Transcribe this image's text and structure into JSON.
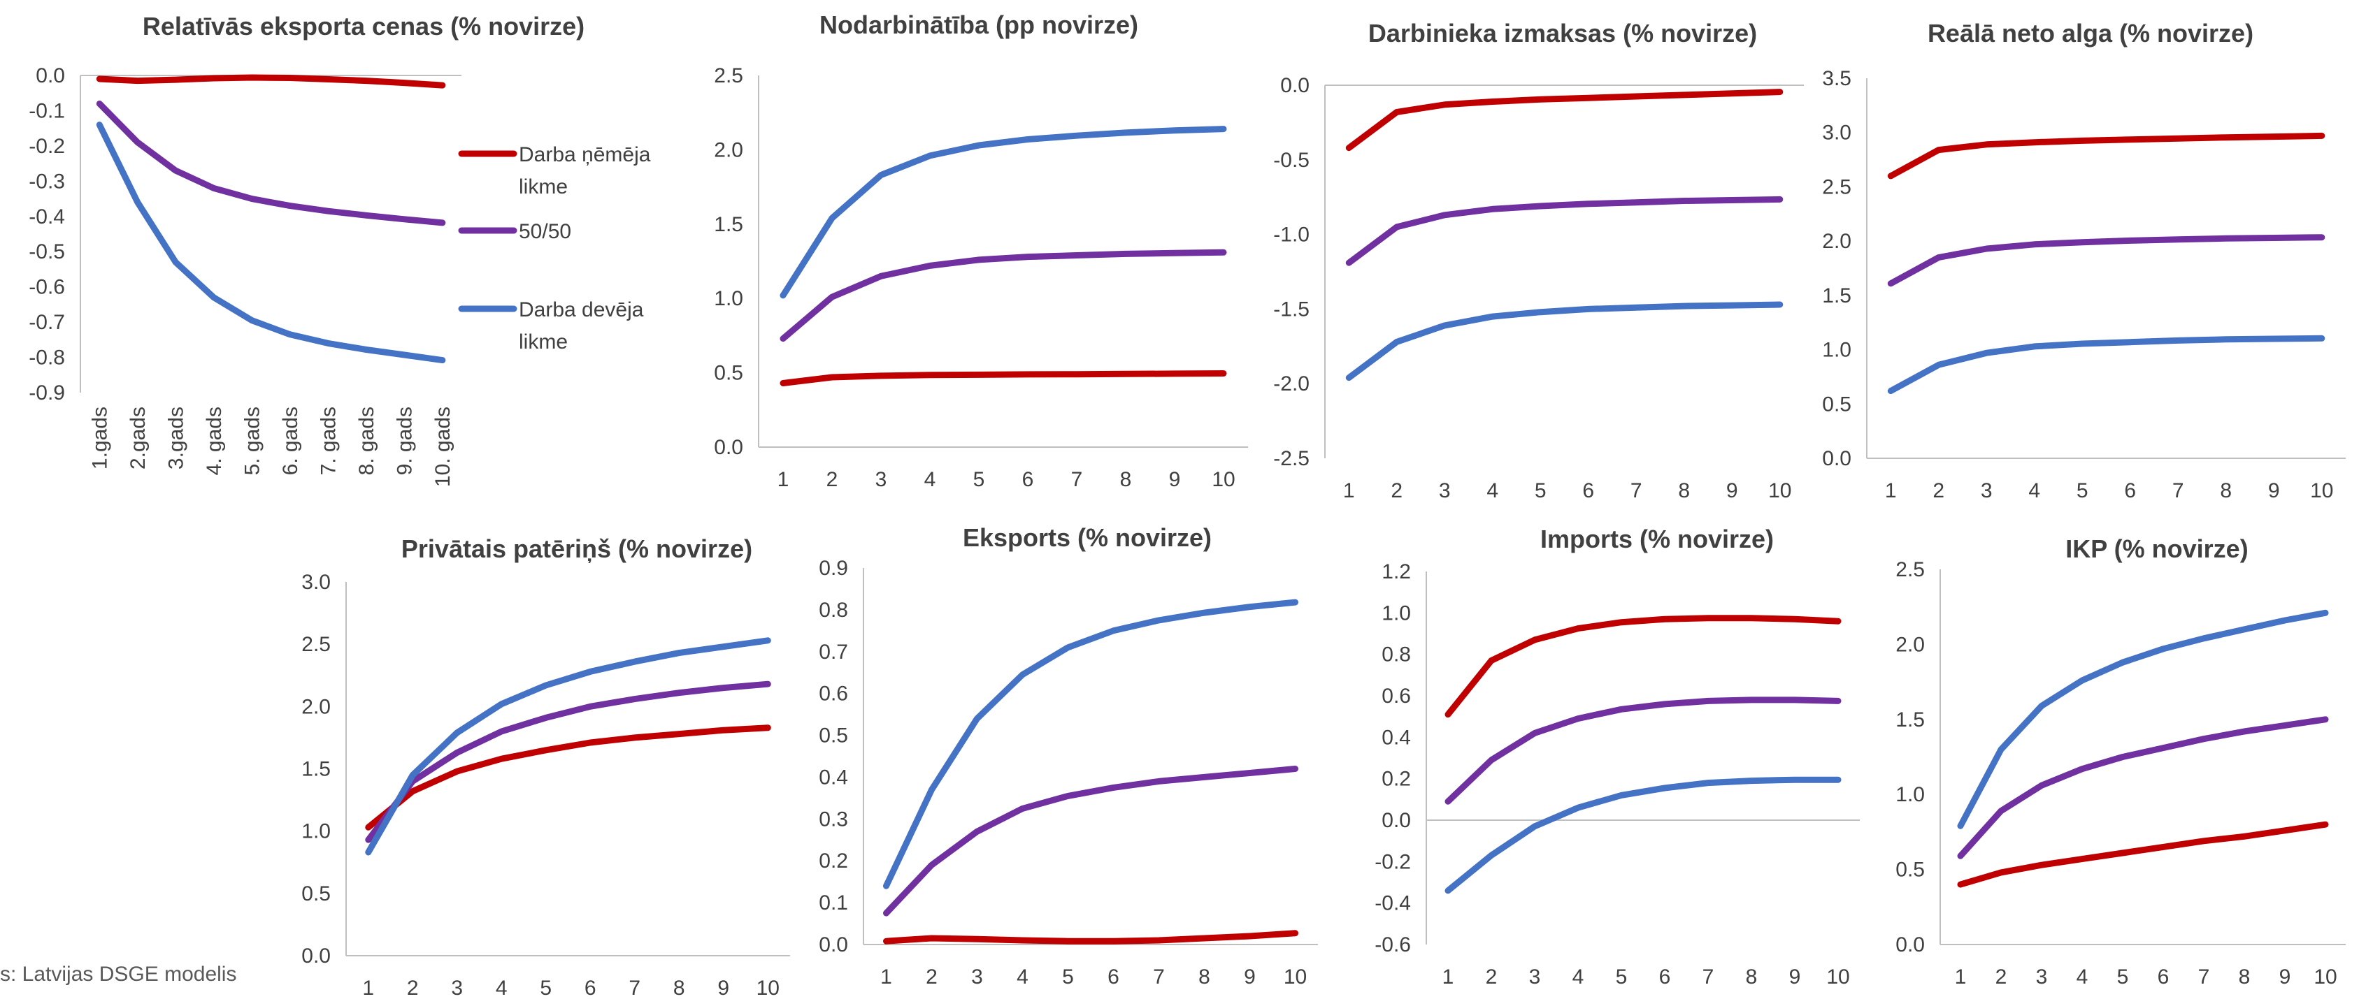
{
  "colors": {
    "employee": "#c00000",
    "split": "#7030a0",
    "employer": "#4472c4",
    "axis": "#bfbfbf",
    "text": "#404040"
  },
  "legend": [
    {
      "lines": [
        "Darba ņēmēja",
        "likme"
      ],
      "color": "#c00000"
    },
    {
      "lines": [
        "50/50"
      ],
      "color": "#7030a0"
    },
    {
      "lines": [
        "Darba devēja",
        "likme"
      ],
      "color": "#4472c4"
    }
  ],
  "source_text": "s: Latvijas DSGE modelis",
  "chart_data": [
    {
      "type": "line",
      "title": "Relatīvās eksporta cenas (% novirze)",
      "categories": [
        "1.gads",
        "2.gads",
        "3.gads",
        "4. gads",
        "5. gads",
        "6. gads",
        "7. gads",
        "8. gads",
        "9. gads",
        "10. gads"
      ],
      "ylim": [
        -0.9,
        0.0
      ],
      "yticks": [
        "0.0",
        "-0.1",
        "-0.2",
        "-0.3",
        "-0.4",
        "-0.5",
        "-0.6",
        "-0.7",
        "-0.8",
        "-0.9"
      ],
      "series": [
        {
          "name": "Darba ņēmēja likme",
          "color": "#c00000",
          "values": [
            -0.01,
            -0.015,
            -0.012,
            -0.008,
            -0.006,
            -0.007,
            -0.011,
            -0.015,
            -0.021,
            -0.028
          ]
        },
        {
          "name": "50/50",
          "color": "#7030a0",
          "values": [
            -0.08,
            -0.19,
            -0.27,
            -0.32,
            -0.35,
            -0.37,
            -0.385,
            -0.397,
            -0.408,
            -0.418
          ]
        },
        {
          "name": "Darba devēja likme",
          "color": "#4472c4",
          "values": [
            -0.14,
            -0.36,
            -0.53,
            -0.63,
            -0.695,
            -0.735,
            -0.76,
            -0.778,
            -0.793,
            -0.808
          ]
        }
      ]
    },
    {
      "type": "line",
      "title": "Nodarbinātība (pp novirze)",
      "categories": [
        "1",
        "2",
        "3",
        "4",
        "5",
        "6",
        "7",
        "8",
        "9",
        "10"
      ],
      "ylim": [
        0.0,
        2.5
      ],
      "yticks": [
        "2.5",
        "2.0",
        "1.5",
        "1.0",
        "0.5",
        "0.0"
      ],
      "series": [
        {
          "name": "Darba ņēmēja likme",
          "color": "#c00000",
          "values": [
            0.43,
            0.47,
            0.48,
            0.485,
            0.487,
            0.489,
            0.49,
            0.492,
            0.494,
            0.496
          ]
        },
        {
          "name": "50/50",
          "color": "#7030a0",
          "values": [
            0.73,
            1.01,
            1.15,
            1.22,
            1.26,
            1.28,
            1.29,
            1.3,
            1.305,
            1.31
          ]
        },
        {
          "name": "Darba devēja likme",
          "color": "#4472c4",
          "values": [
            1.02,
            1.54,
            1.83,
            1.96,
            2.03,
            2.07,
            2.095,
            2.115,
            2.13,
            2.14
          ]
        }
      ]
    },
    {
      "type": "line",
      "title": "Darbinieka izmaksas (% novirze)",
      "categories": [
        "1",
        "2",
        "3",
        "4",
        "5",
        "6",
        "7",
        "8",
        "9",
        "10"
      ],
      "ylim": [
        -2.5,
        0.0
      ],
      "yticks": [
        "0.0",
        "-0.5",
        "-1.0",
        "-1.5",
        "-2.0",
        "-2.5"
      ],
      "series": [
        {
          "name": "Darba ņēmēja likme",
          "color": "#c00000",
          "values": [
            -0.42,
            -0.18,
            -0.13,
            -0.11,
            -0.095,
            -0.085,
            -0.075,
            -0.065,
            -0.055,
            -0.045
          ]
        },
        {
          "name": "50/50",
          "color": "#7030a0",
          "values": [
            -1.19,
            -0.95,
            -0.87,
            -0.83,
            -0.81,
            -0.795,
            -0.785,
            -0.775,
            -0.77,
            -0.765
          ]
        },
        {
          "name": "Darba devēja likme",
          "color": "#4472c4",
          "values": [
            -1.96,
            -1.72,
            -1.61,
            -1.55,
            -1.52,
            -1.5,
            -1.49,
            -1.48,
            -1.475,
            -1.47
          ]
        }
      ]
    },
    {
      "type": "line",
      "title": "Reālā neto alga (% novirze)",
      "categories": [
        "1",
        "2",
        "3",
        "4",
        "5",
        "6",
        "7",
        "8",
        "9",
        "10"
      ],
      "ylim": [
        0.0,
        3.5
      ],
      "yticks": [
        "3.5",
        "3.0",
        "2.5",
        "2.0",
        "1.5",
        "1.0",
        "0.5",
        "0.0"
      ],
      "series": [
        {
          "name": "Darba ņēmēja likme",
          "color": "#c00000",
          "values": [
            2.6,
            2.84,
            2.89,
            2.91,
            2.925,
            2.935,
            2.945,
            2.955,
            2.962,
            2.97
          ]
        },
        {
          "name": "50/50",
          "color": "#7030a0",
          "values": [
            1.61,
            1.85,
            1.93,
            1.97,
            1.99,
            2.005,
            2.015,
            2.025,
            2.03,
            2.035
          ]
        },
        {
          "name": "Darba devēja likme",
          "color": "#4472c4",
          "values": [
            0.62,
            0.86,
            0.97,
            1.03,
            1.055,
            1.07,
            1.085,
            1.095,
            1.1,
            1.105
          ]
        }
      ]
    },
    {
      "type": "line",
      "title": "Privātais patēriņš (% novirze)",
      "categories": [
        "1",
        "2",
        "3",
        "4",
        "5",
        "6",
        "7",
        "8",
        "9",
        "10"
      ],
      "ylim": [
        0.0,
        3.0
      ],
      "yticks": [
        "3.0",
        "2.5",
        "2.0",
        "1.5",
        "1.0",
        "0.5",
        "0.0"
      ],
      "series": [
        {
          "name": "Darba ņēmēja likme",
          "color": "#c00000",
          "values": [
            1.03,
            1.32,
            1.48,
            1.58,
            1.65,
            1.71,
            1.75,
            1.78,
            1.81,
            1.83
          ]
        },
        {
          "name": "50/50",
          "color": "#7030a0",
          "values": [
            0.93,
            1.4,
            1.63,
            1.8,
            1.91,
            2.0,
            2.06,
            2.11,
            2.15,
            2.18
          ]
        },
        {
          "name": "Darba devēja likme",
          "color": "#4472c4",
          "values": [
            0.83,
            1.45,
            1.79,
            2.02,
            2.17,
            2.28,
            2.36,
            2.43,
            2.48,
            2.53
          ]
        }
      ]
    },
    {
      "type": "line",
      "title": "Eksports (% novirze)",
      "categories": [
        "1",
        "2",
        "3",
        "4",
        "5",
        "6",
        "7",
        "8",
        "9",
        "10"
      ],
      "ylim": [
        0.0,
        0.9
      ],
      "yticks": [
        "0.9",
        "0.8",
        "0.7",
        "0.6",
        "0.5",
        "0.4",
        "0.3",
        "0.2",
        "0.1",
        "0.0"
      ],
      "series": [
        {
          "name": "Darba ņēmēja likme",
          "color": "#c00000",
          "values": [
            0.008,
            0.015,
            0.013,
            0.01,
            0.008,
            0.008,
            0.01,
            0.015,
            0.02,
            0.027
          ]
        },
        {
          "name": "50/50",
          "color": "#7030a0",
          "values": [
            0.075,
            0.19,
            0.27,
            0.325,
            0.355,
            0.375,
            0.39,
            0.4,
            0.41,
            0.42
          ]
        },
        {
          "name": "Darba devēja likme",
          "color": "#4472c4",
          "values": [
            0.14,
            0.37,
            0.54,
            0.645,
            0.71,
            0.75,
            0.775,
            0.793,
            0.807,
            0.818
          ]
        }
      ]
    },
    {
      "type": "line",
      "title": "Imports (% novirze)",
      "categories": [
        "1",
        "2",
        "3",
        "4",
        "5",
        "6",
        "7",
        "8",
        "9",
        "10"
      ],
      "ylim": [
        -0.6,
        1.2
      ],
      "yticks": [
        "1.2",
        "1.0",
        "0.8",
        "0.6",
        "0.4",
        "0.2",
        "0.0",
        "-0.2",
        "-0.4",
        "-0.6"
      ],
      "series": [
        {
          "name": "Darba ņēmēja likme",
          "color": "#c00000",
          "values": [
            0.51,
            0.77,
            0.87,
            0.925,
            0.955,
            0.97,
            0.975,
            0.975,
            0.97,
            0.96
          ]
        },
        {
          "name": "50/50",
          "color": "#7030a0",
          "values": [
            0.09,
            0.29,
            0.42,
            0.49,
            0.535,
            0.56,
            0.575,
            0.58,
            0.58,
            0.575
          ]
        },
        {
          "name": "Darba devēja likme",
          "color": "#4472c4",
          "values": [
            -0.34,
            -0.17,
            -0.03,
            0.06,
            0.12,
            0.155,
            0.18,
            0.19,
            0.195,
            0.195
          ]
        }
      ]
    },
    {
      "type": "line",
      "title": "IKP (% novirze)",
      "categories": [
        "1",
        "2",
        "3",
        "4",
        "5",
        "6",
        "7",
        "8",
        "9",
        "10"
      ],
      "ylim": [
        0.0,
        2.5
      ],
      "yticks": [
        "2.5",
        "2.0",
        "1.5",
        "1.0",
        "0.5",
        "0.0"
      ],
      "series": [
        {
          "name": "Darba ņēmēja likme",
          "color": "#c00000",
          "values": [
            0.4,
            0.48,
            0.53,
            0.57,
            0.61,
            0.65,
            0.69,
            0.72,
            0.76,
            0.8
          ]
        },
        {
          "name": "50/50",
          "color": "#7030a0",
          "values": [
            0.59,
            0.89,
            1.06,
            1.17,
            1.25,
            1.31,
            1.37,
            1.42,
            1.46,
            1.5
          ]
        },
        {
          "name": "Darba devēja likme",
          "color": "#4472c4",
          "values": [
            0.79,
            1.3,
            1.59,
            1.76,
            1.88,
            1.97,
            2.04,
            2.1,
            2.16,
            2.21
          ]
        }
      ]
    }
  ]
}
